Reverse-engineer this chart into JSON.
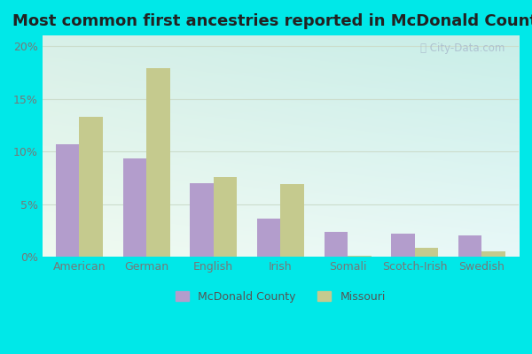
{
  "title": "Most common first ancestries reported in McDonald County",
  "categories": [
    "American",
    "German",
    "English",
    "Irish",
    "Somali",
    "Scotch-Irish",
    "Swedish"
  ],
  "mcdonald_values": [
    10.7,
    9.3,
    7.0,
    3.6,
    2.4,
    2.2,
    2.0
  ],
  "missouri_values": [
    13.3,
    17.9,
    7.6,
    6.9,
    0.1,
    0.9,
    0.5
  ],
  "mcdonald_color": "#b39dcc",
  "missouri_color": "#c5ca8e",
  "outer_background": "#00e8e8",
  "ylim": [
    0,
    21
  ],
  "yticks": [
    0,
    5,
    10,
    15,
    20
  ],
  "ytick_labels": [
    "0%",
    "5%",
    "10%",
    "15%",
    "20%"
  ],
  "bar_width": 0.35,
  "title_fontsize": 13,
  "tick_fontsize": 9,
  "legend_fontsize": 9,
  "grid_color": "#ccddcc",
  "bg_topleft": "#f0faf0",
  "bg_topright": "#e8f8f8",
  "bg_bottomleft": "#d8f0e8",
  "bg_bottomright": "#c8eee8"
}
